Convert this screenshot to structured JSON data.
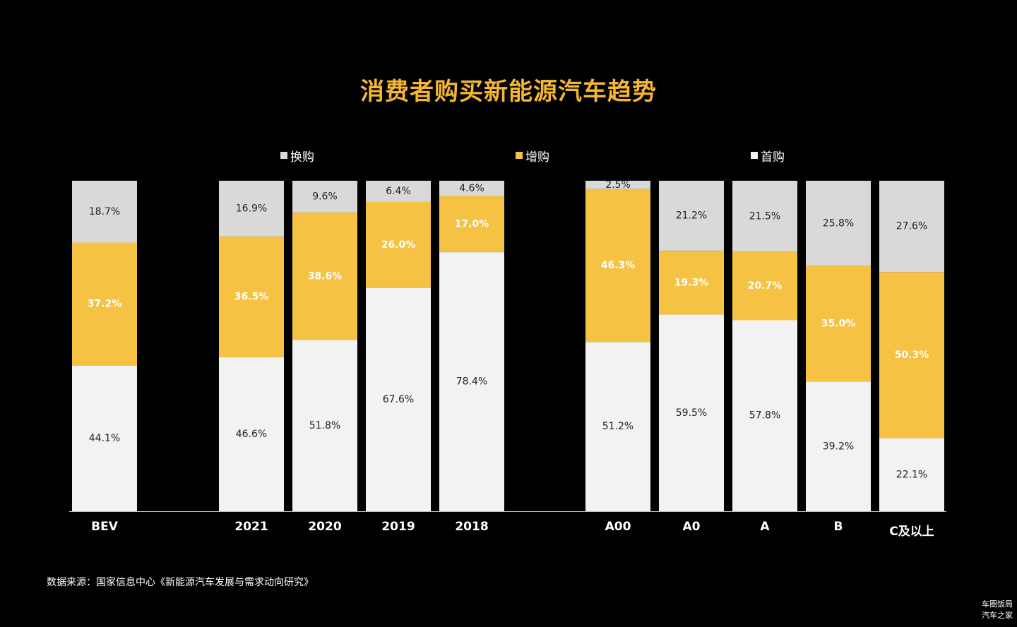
{
  "title": "消费者购买新能源汽车趋势",
  "colors": {
    "background": "#000000",
    "title": "#f5b731",
    "replace": "#d9d9d9",
    "add": "#f5c244",
    "first": "#f2f2f2",
    "label_dark": "#222222",
    "label_light": "#ffffff"
  },
  "legend": [
    {
      "label": "换购",
      "color": "#d9d9d9"
    },
    {
      "label": "增购",
      "color": "#f5c244"
    },
    {
      "label": "首购",
      "color": "#f2f2f2"
    }
  ],
  "chart_data": {
    "type": "bar",
    "stacked": "100%",
    "categories": [
      "BEV",
      "2021",
      "2020",
      "2019",
      "2018",
      "A00",
      "A0",
      "A",
      "B",
      "C及以上"
    ],
    "series": [
      {
        "name": "首购",
        "values": [
          44.1,
          46.6,
          51.8,
          67.6,
          78.4,
          51.2,
          59.5,
          57.8,
          39.2,
          22.1
        ]
      },
      {
        "name": "增购",
        "values": [
          37.2,
          36.5,
          38.6,
          26.0,
          17.0,
          46.3,
          19.3,
          20.7,
          35.0,
          50.3
        ]
      },
      {
        "name": "换购",
        "values": [
          18.7,
          16.9,
          9.6,
          6.4,
          4.6,
          2.5,
          21.2,
          21.5,
          25.8,
          27.6
        ]
      }
    ],
    "value_labels": [
      [
        "44.1%",
        "46.6%",
        "51.8%",
        "67.6%",
        "78.4%",
        "51.2%",
        "59.5%",
        "57.8%",
        "39.2%",
        "22.1%"
      ],
      [
        "37.2%",
        "36.5%",
        "38.6%",
        "26.0%",
        "17.0%",
        "46.3%",
        "19.3%",
        "20.7%",
        "35.0%",
        "50.3%"
      ],
      [
        "18.7%",
        "16.9%",
        "9.6%",
        "6.4%",
        "4.6%",
        "2.5%",
        "21.2%",
        "21.5%",
        "25.8%",
        "27.6%"
      ]
    ],
    "ylim": [
      0,
      100
    ],
    "grid": false,
    "legend_position": "top"
  },
  "source": "数据来源：国家信息中心《新能源汽车发展与需求动向研究》",
  "watermark": [
    "车圈饭局",
    "汽车之家"
  ]
}
